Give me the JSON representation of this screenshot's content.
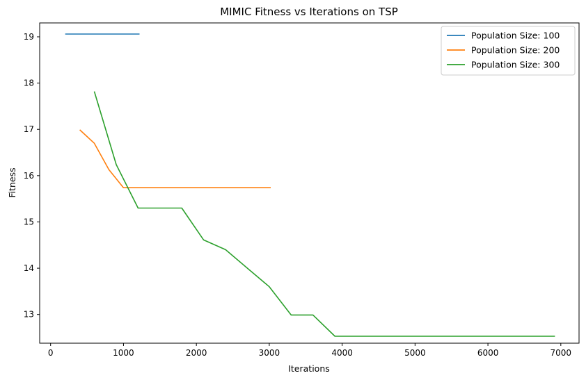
{
  "chart_data": {
    "type": "line",
    "title": "MIMIC Fitness vs Iterations on TSP",
    "xlabel": "Iterations",
    "ylabel": "Fitness",
    "xlim": [
      -150,
      7250
    ],
    "ylim": [
      12.38,
      19.3
    ],
    "xticks": [
      0,
      1000,
      2000,
      3000,
      4000,
      5000,
      6000,
      7000
    ],
    "yticks": [
      13,
      14,
      15,
      16,
      17,
      18,
      19
    ],
    "grid": false,
    "legend_position": "top-right",
    "series": [
      {
        "name": "Population Size: 100",
        "color": "#1f77b4",
        "x": [
          200,
          1220
        ],
        "y": [
          19.06,
          19.06
        ]
      },
      {
        "name": "Population Size: 200",
        "color": "#ff7f0e",
        "x": [
          400,
          600,
          800,
          1000,
          1200,
          1500,
          2000,
          2500,
          3020
        ],
        "y": [
          16.99,
          16.7,
          16.13,
          15.74,
          15.74,
          15.74,
          15.74,
          15.74,
          15.74
        ]
      },
      {
        "name": "Population Size: 300",
        "color": "#2ca02c",
        "x": [
          600,
          900,
          1200,
          1500,
          1800,
          2100,
          2400,
          2700,
          3000,
          3300,
          3600,
          3900,
          4500,
          5500,
          6500,
          6920
        ],
        "y": [
          17.82,
          16.24,
          15.3,
          15.3,
          15.3,
          14.61,
          14.4,
          14.0,
          13.6,
          12.99,
          12.99,
          12.53,
          12.53,
          12.53,
          12.53,
          12.53
        ]
      }
    ]
  }
}
